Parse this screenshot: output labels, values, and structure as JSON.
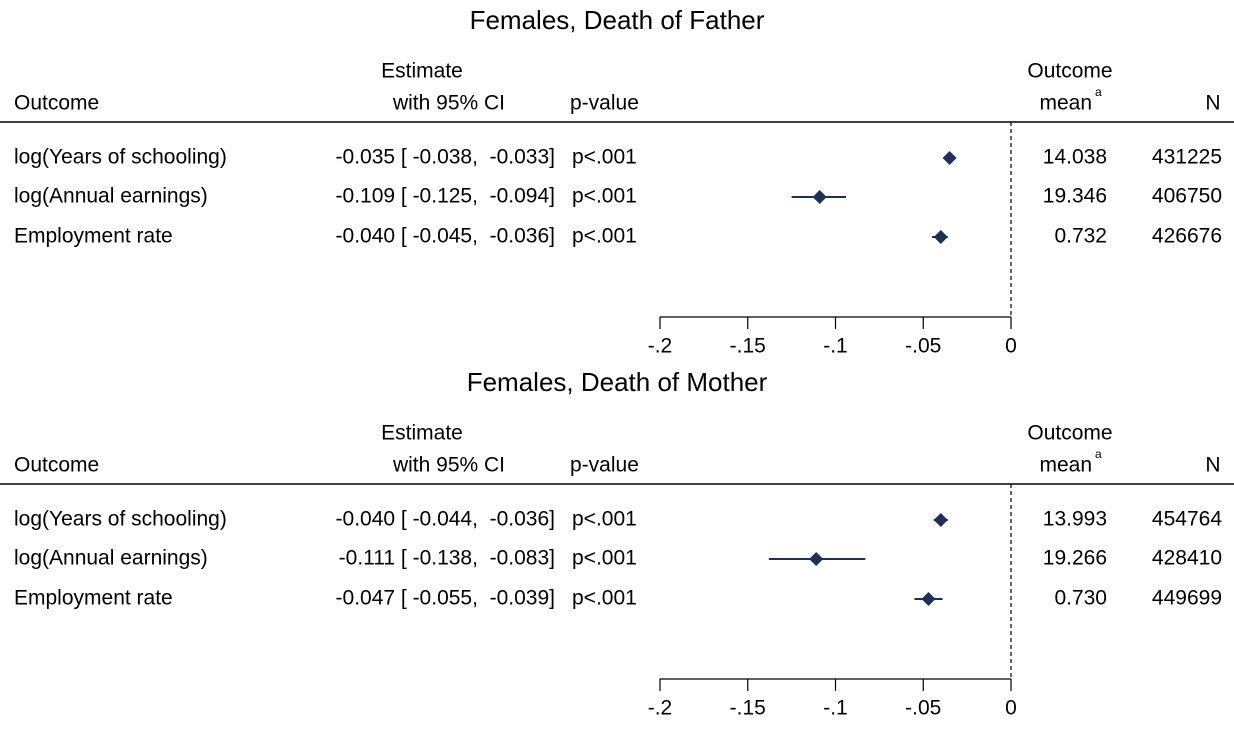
{
  "chart_data": [
    {
      "type": "forest",
      "title": "Females, Death of Father",
      "headers": {
        "outcome": "Outcome",
        "estimate": [
          "Estimate",
          "with 95% CI"
        ],
        "p": "p-value",
        "mean": [
          "Outcome",
          "mean"
        ],
        "mean_note": "a",
        "n": "N"
      },
      "categories": [
        "log(Years of schooling)",
        "log(Annual earnings)",
        "Employment rate"
      ],
      "estimates": [
        -0.035,
        -0.109,
        -0.04
      ],
      "ci_low": [
        -0.038,
        -0.125,
        -0.045
      ],
      "ci_high": [
        -0.033,
        -0.094,
        -0.036
      ],
      "value_labels": [
        "-0.035 [ -0.038,  -0.033]",
        "-0.109 [ -0.125,  -0.094]",
        "-0.040 [ -0.045,  -0.036]"
      ],
      "p_labels": [
        "p<.001",
        "p<.001",
        "p<.001"
      ],
      "means": [
        "14.038",
        "19.346",
        "0.732"
      ],
      "n": [
        431225,
        406750,
        426676
      ],
      "color": "#1f2f57",
      "xlim": [
        -0.2,
        0
      ],
      "xticks": [
        {
          "value": -0.2,
          "label": "-.2"
        },
        {
          "value": -0.15,
          "label": "-.15"
        },
        {
          "value": -0.1,
          "label": "-.1"
        },
        {
          "value": -0.05,
          "label": "-.05"
        },
        0
      ],
      "ref_x": 0
    },
    {
      "type": "forest",
      "title": "Females, Death of Mother",
      "headers": {
        "outcome": "Outcome",
        "estimate": [
          "Estimate",
          "with 95% CI"
        ],
        "p": "p-value",
        "mean": [
          "Outcome",
          "mean"
        ],
        "mean_note": "a",
        "n": "N"
      },
      "categories": [
        "log(Years of schooling)",
        "log(Annual earnings)",
        "Employment rate"
      ],
      "estimates": [
        -0.04,
        -0.111,
        -0.047
      ],
      "ci_low": [
        -0.044,
        -0.138,
        -0.055
      ],
      "ci_high": [
        -0.036,
        -0.083,
        -0.039
      ],
      "value_labels": [
        "-0.040 [ -0.044,  -0.036]",
        "-0.111 [ -0.138,  -0.083]",
        "-0.047 [ -0.055,  -0.039]"
      ],
      "p_labels": [
        "p<.001",
        "p<.001",
        "p<.001"
      ],
      "means": [
        "13.993",
        "19.266",
        "0.730"
      ],
      "n": [
        454764,
        428410,
        449699
      ],
      "color": "#1f2f57",
      "xlim": [
        -0.2,
        0
      ],
      "xticks": [
        {
          "value": -0.2,
          "label": "-.2"
        },
        {
          "value": -0.15,
          "label": "-.15"
        },
        {
          "value": -0.1,
          "label": "-.1"
        },
        {
          "value": -0.05,
          "label": "-.05"
        },
        0
      ],
      "ref_x": 0
    }
  ]
}
